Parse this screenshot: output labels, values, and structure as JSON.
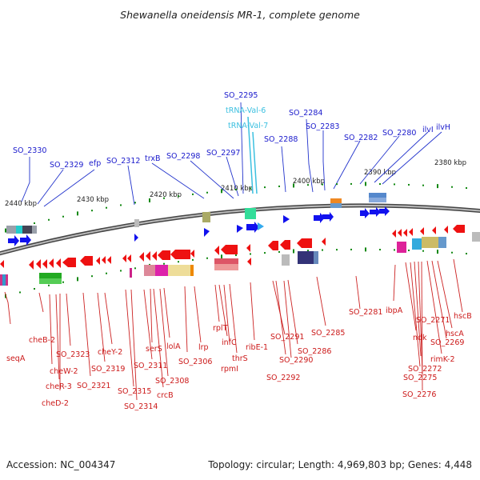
{
  "title": "Shewanella oneidensis MR-1, complete genome",
  "footer": {
    "accession": "Accession: NC_004347",
    "topology": "Topology: circular; Length: 4,969,803 bp; Genes: 4,448"
  },
  "ticks": [
    "2440 kbp",
    "2430 kbp",
    "2420 kbp",
    "2410 kbp",
    "2400 kbp",
    "2390 kbp",
    "2380 kbp"
  ],
  "top_labels": [
    "SO_2295",
    "SO_2284",
    "SO_2283",
    "SO_2280",
    "ilvI",
    "ilvH",
    "SO_2330",
    "SO_2329",
    "efp",
    "SO_2312",
    "trxB",
    "SO_2298",
    "SO_2297",
    "SO_2288",
    "SO_2282"
  ],
  "trna_labels": [
    "tRNA-Val-6",
    "tRNA-Val-7"
  ],
  "bottom_labels": [
    "seqA",
    "cheB-2",
    "cheW-2",
    "cheR-3",
    "cheD-2",
    "SO_2323",
    "SO_2321",
    "SO_2319",
    "cheY-2",
    "SO_2315",
    "SO_2314",
    "SO_2311",
    "serS",
    "crcB",
    "SO_2308",
    "lolA",
    "SO_2306",
    "lrp",
    "rplT",
    "infC",
    "rpmI",
    "thrS",
    "ribE-1",
    "SO_2291",
    "SO_2292",
    "SO_2290",
    "SO_2286",
    "SO_2285",
    "SO_2281",
    "ibpA",
    "ndk",
    "SO_2271",
    "SO_2272",
    "SO_2275",
    "SO_2276",
    "rimK-2",
    "SO_2269",
    "hscA",
    "hscB"
  ],
  "colors": {
    "forward_gene": "#1111ee",
    "reverse_gene": "#ee1111",
    "trna": "#3cc0e0",
    "backbone": "#777777",
    "tick_mark": "#118811"
  }
}
